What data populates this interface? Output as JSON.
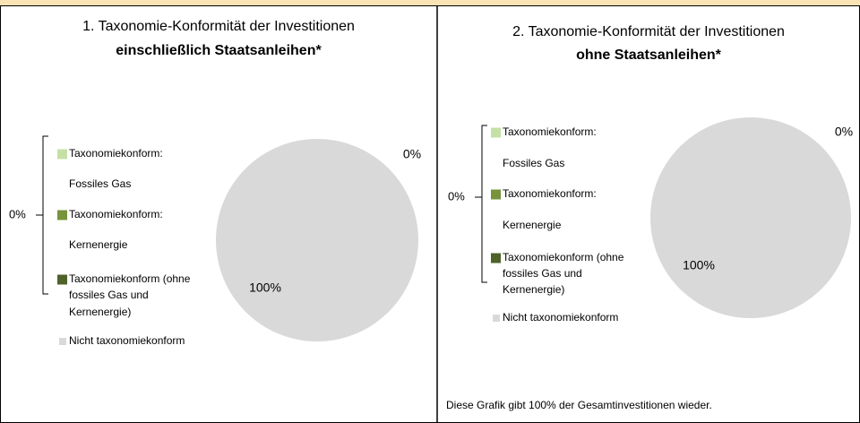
{
  "panels": [
    {
      "title": "1. Taxonomie-Konformität der Investitionen",
      "title_bold": "einschließlich Staatsanleihen*",
      "chart": {
        "type": "pie",
        "categories": [
          "Taxonomiekonform: Fossiles Gas",
          "Taxonomiekonform: Kernenergie",
          "Taxonomiekonform (ohne fossiles Gas und Kernenergie)",
          "Nicht taxonomiekonform"
        ],
        "legend_lines": [
          [
            "Taxonomiekonform:",
            "Fossiles Gas"
          ],
          [
            "Taxonomiekonform:",
            "Kernenergie"
          ],
          [
            "Taxonomiekonform (ohne",
            "fossiles Gas und",
            "Kernenergie)"
          ],
          [
            "Nicht taxonomiekonform"
          ]
        ],
        "colors": [
          "#c5e0a5",
          "#77933c",
          "#4f6228",
          "#d9d9d9"
        ],
        "values": [
          0,
          0,
          0,
          100
        ],
        "group_value": 0,
        "group_label": "0%",
        "slice_label_zero": "0%",
        "slice_label_full": "100%"
      }
    },
    {
      "title": "2. Taxonomie-Konformität der Investitionen",
      "title_bold": "ohne Staatsanleihen*",
      "chart": {
        "type": "pie",
        "categories": [
          "Taxonomiekonform: Fossiles Gas",
          "Taxonomiekonform: Kernenergie",
          "Taxonomiekonform (ohne fossiles Gas und Kernenergie)",
          "Nicht taxonomiekonform"
        ],
        "legend_lines": [
          [
            "Taxonomiekonform:",
            "Fossiles Gas"
          ],
          [
            "Taxonomiekonform:",
            "Kernenergie"
          ],
          [
            "Taxonomiekonform (ohne",
            "fossiles Gas und",
            "Kernenergie)"
          ],
          [
            "Nicht taxonomiekonform"
          ]
        ],
        "colors": [
          "#c5e0a5",
          "#77933c",
          "#4f6228",
          "#d9d9d9"
        ],
        "values": [
          0,
          0,
          0,
          100
        ],
        "group_value": 0,
        "group_label": "0%",
        "slice_label_zero": "0%",
        "slice_label_full": "100%"
      },
      "footnote": "Diese Grafik gibt 100% der Gesamtinvestitionen wieder."
    }
  ]
}
